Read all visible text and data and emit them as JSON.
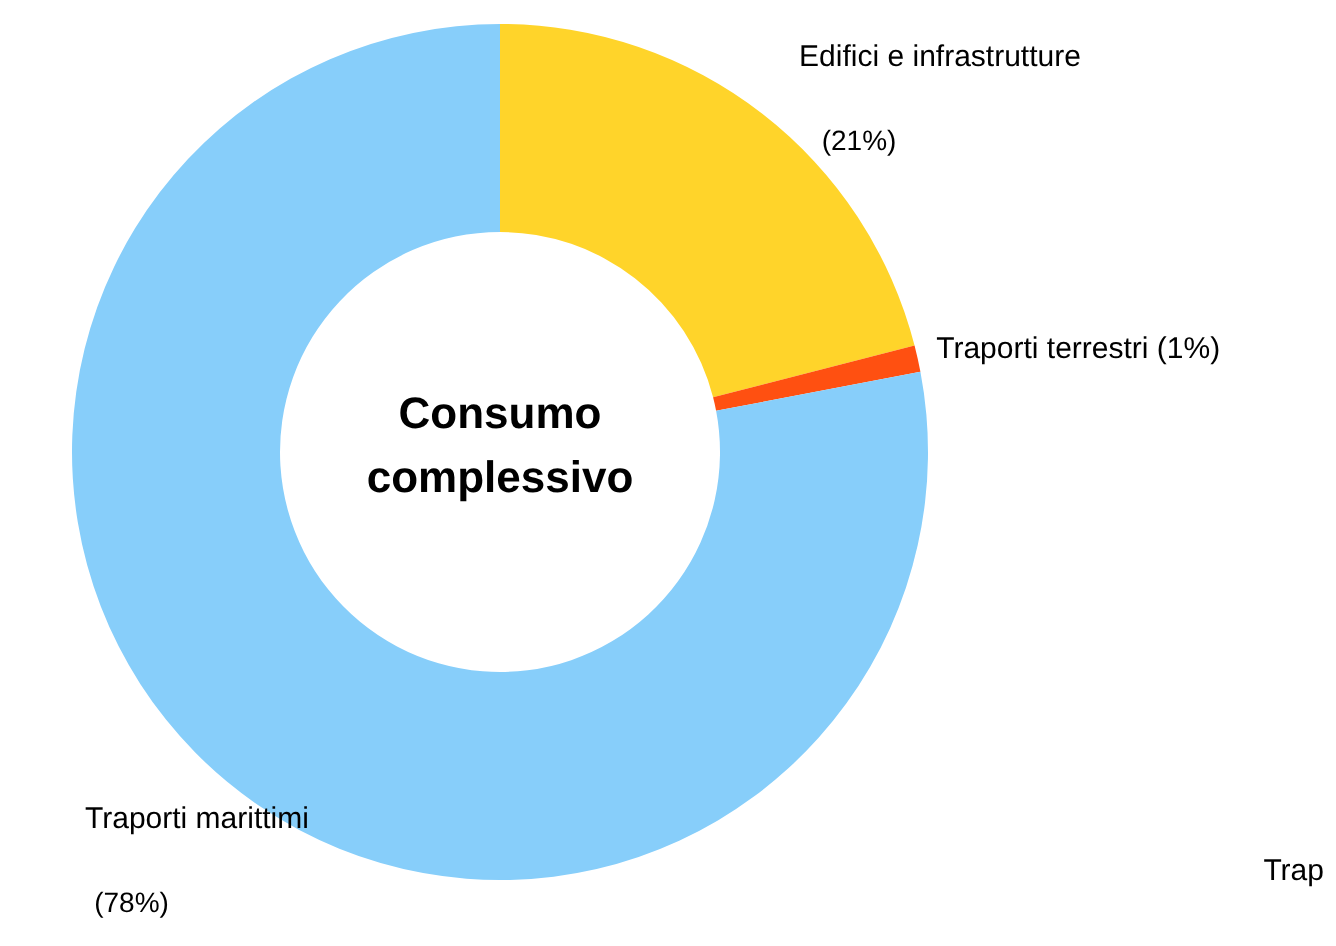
{
  "chart_data": {
    "type": "donut",
    "title": "Consumo complessivo",
    "categories": [
      "Edifici e infrastrutture",
      "Traporti terrestri",
      "Traporti marittimi"
    ],
    "values": [
      21,
      1,
      78
    ],
    "value_labels": [
      "(21%)",
      "(1%)",
      "(78%)"
    ],
    "colors": [
      "#ffd42a",
      "#ff5011",
      "#87cefa"
    ],
    "annotations": [
      "Trap"
    ]
  }
}
